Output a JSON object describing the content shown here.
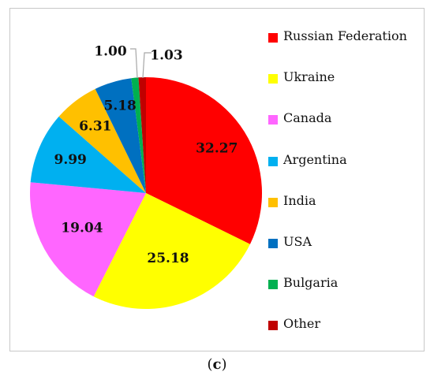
{
  "chart_data": {
    "type": "pie",
    "categories": [
      "Russian Federation",
      "Ukraine",
      "Canada",
      "Argentina",
      "India",
      "USA",
      "Bulgaria",
      "Other"
    ],
    "values": [
      32.27,
      25.18,
      19.04,
      9.99,
      6.31,
      5.18,
      1.0,
      1.03
    ],
    "value_labels": [
      "32.27",
      "25.18",
      "19.04",
      "9.99",
      "6.31",
      "5.18",
      "1.00",
      "1.03"
    ],
    "colors": [
      "#ff0000",
      "#ffff00",
      "#ff66ff",
      "#00b0f0",
      "#ffc000",
      "#0070c0",
      "#00b050",
      "#c00000"
    ],
    "start_angle_deg": 0,
    "direction": "clockwise",
    "legend_position": "right"
  },
  "caption": {
    "open": "(",
    "letter": "c",
    "close": ")"
  }
}
